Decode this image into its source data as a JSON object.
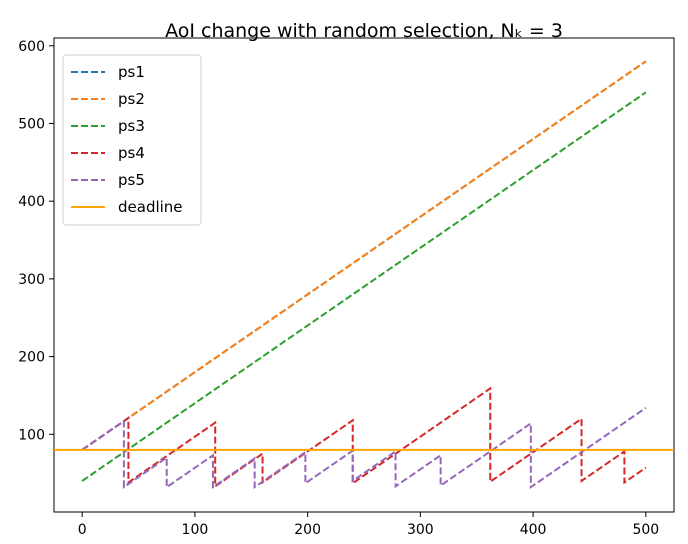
{
  "chart_data": {
    "type": "line",
    "title": "AoI change with random selection, Nₖ = 3",
    "xlabel": "",
    "ylabel": "",
    "xlim": [
      -25,
      525
    ],
    "ylim": [
      0,
      610
    ],
    "xticks": [
      0,
      100,
      200,
      300,
      400,
      500
    ],
    "yticks": [
      100,
      200,
      300,
      400,
      500,
      600
    ],
    "grid": false,
    "legend_position": "top-left",
    "series": [
      {
        "name": "ps1",
        "color": "#1f77b4",
        "style": "dashed",
        "x": [
          0,
          500
        ],
        "y": [
          80,
          580
        ]
      },
      {
        "name": "ps2",
        "color": "#ff7f0e",
        "style": "dashed",
        "x": [
          0,
          500
        ],
        "y": [
          80,
          580
        ]
      },
      {
        "name": "ps3",
        "color": "#2ca02c",
        "style": "dashed",
        "x": [
          0,
          500
        ],
        "y": [
          40,
          540
        ]
      },
      {
        "name": "ps4",
        "color": "#d62728",
        "style": "dashed",
        "x": [
          0,
          41,
          41,
          118,
          118,
          160,
          160,
          240,
          240,
          362,
          362,
          443,
          443,
          481,
          481,
          500
        ],
        "y": [
          80,
          121,
          38,
          115,
          33,
          75,
          38,
          118,
          37,
          159,
          39,
          120,
          40,
          78,
          38,
          57
        ]
      },
      {
        "name": "ps5",
        "color": "#9467bd",
        "style": "dashed",
        "x": [
          0,
          37,
          37,
          75,
          75,
          116,
          116,
          153,
          153,
          198,
          198,
          240,
          240,
          278,
          278,
          318,
          318,
          398,
          398,
          500
        ],
        "y": [
          80,
          117,
          32,
          70,
          32,
          73,
          32,
          69,
          32,
          77,
          37,
          79,
          40,
          78,
          33,
          73,
          34,
          114,
          32,
          134
        ]
      },
      {
        "name": "deadline",
        "color": "#ffa500",
        "style": "solid",
        "x": [
          -25,
          525
        ],
        "y": [
          80,
          80
        ]
      }
    ]
  }
}
